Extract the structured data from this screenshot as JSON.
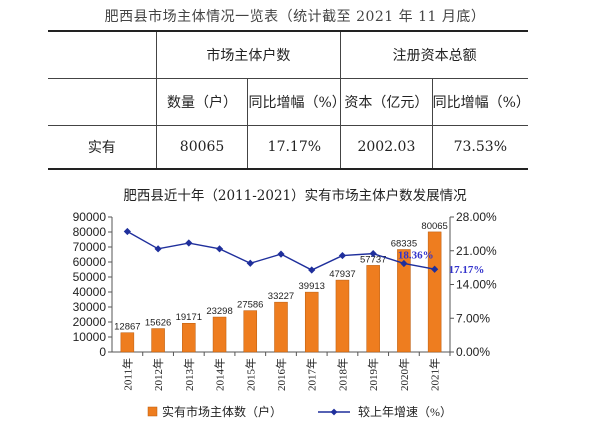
{
  "table": {
    "title": "肥西县市场主体情况一览表（统计截至 2021 年 11 月底）",
    "group_headers": [
      "市场主体户数",
      "注册资本总额"
    ],
    "sub_headers": [
      "数量（户）",
      "同比增幅（%）",
      "资本（亿元）",
      "同比增幅（%）"
    ],
    "row_label": "实有",
    "row_values": [
      "80065",
      "17.17%",
      "2002.03",
      "73.53%"
    ]
  },
  "colors": {
    "bar": "#ee7d1f",
    "bar_edge": "#b85a0c",
    "line": "#1f2f9c",
    "rate_label": "#3333cc"
  },
  "chart_data": {
    "type": "bar+line",
    "title": "肥西县近十年（2011-2021）实有市场主体户数发展情况",
    "categories": [
      "2011年",
      "2012年",
      "2013年",
      "2014年",
      "2015年",
      "2016年",
      "2017年",
      "2018年",
      "2019年",
      "2020年",
      "2021年"
    ],
    "series": [
      {
        "name": "实有市场主体数（户）",
        "type": "bar",
        "axis": "left",
        "values": [
          12867,
          15626,
          19171,
          23298,
          27586,
          33227,
          39913,
          47937,
          57737,
          68335,
          80065
        ],
        "value_labels": [
          "12867",
          "15626",
          "19171",
          "23298",
          "27586",
          "33227",
          "39913",
          "47937",
          "57737",
          "68335",
          "80065"
        ]
      },
      {
        "name": "较上年增速（%）",
        "type": "line",
        "axis": "right",
        "values": [
          25.0,
          21.4,
          22.6,
          21.4,
          18.4,
          20.3,
          17.0,
          20.0,
          20.4,
          18.36,
          17.17
        ],
        "point_labels": [
          "",
          "",
          "",
          "",
          "",
          "",
          "",
          "",
          "",
          "18.36%",
          "17.17%"
        ]
      }
    ],
    "y_left": {
      "min": 0,
      "max": 90000,
      "ticks": [
        "0",
        "10000",
        "20000",
        "30000",
        "40000",
        "50000",
        "60000",
        "70000",
        "80000",
        "90000"
      ]
    },
    "y_right": {
      "min": 0,
      "max": 28,
      "ticks": [
        "0.00%",
        "7.00%",
        "14.00%",
        "21.00%",
        "28.00%"
      ]
    },
    "grid": false,
    "legend_position": "bottom"
  }
}
